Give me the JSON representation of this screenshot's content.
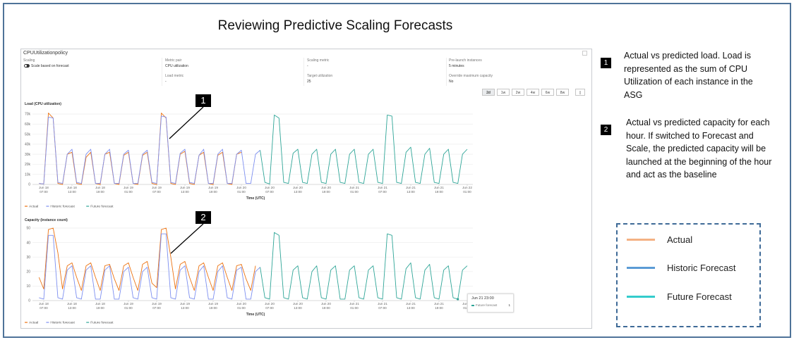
{
  "title": "Reviewing Predictive Scaling Forecasts",
  "panel": {
    "policy_name": "CPUUtilizationpolicy",
    "fields": [
      {
        "label": "Scaling",
        "value": "Scale based on forecast",
        "toggle": true
      },
      {
        "label": "Metric pair",
        "value": "CPU utilization"
      },
      {
        "label": "Scaling metric",
        "value": "-"
      },
      {
        "label": "Pre-launch instances",
        "value": "5 minutes"
      },
      {
        "label": "Load metric",
        "value": "-"
      },
      {
        "label": "Target utilization",
        "value": "25"
      },
      {
        "label": "Override maximum capacity",
        "value": "No"
      }
    ],
    "range_buttons": [
      "2d",
      "1w",
      "2w",
      "4w",
      "6w",
      "8w"
    ],
    "selected_range": "2d"
  },
  "tooltip": {
    "title": "Jun 21 23:00",
    "series": "Future forecast",
    "value": "1"
  },
  "callouts": [
    {
      "number": "1",
      "text": "Actual vs predicted load. Load is represented as the sum of CPU Utilization of each instance in the ASG"
    },
    {
      "number": "2",
      "text": "Actual vs predicted capacity for each hour. If switched to Forecast and Scale, the predicted capacity will be launched at the beginning of the hour and act as the baseline"
    }
  ],
  "legend_box": [
    {
      "label": "Actual",
      "color": "#f4b183"
    },
    {
      "label": "Historic Forecast",
      "color": "#5b9bd5"
    },
    {
      "label": "Future Forecast",
      "color": "#33cccc"
    }
  ],
  "chart_data": [
    {
      "type": "line",
      "title": "Load (CPU utilization)",
      "xlabel": "Time (UTC)",
      "ylabel": "",
      "ylim": [
        0,
        70000
      ],
      "y_ticks": [
        "0",
        "10k",
        "20k",
        "30k",
        "40k",
        "50k",
        "60k",
        "70k"
      ],
      "x_ticks": [
        [
          "Jun 18",
          "07:00"
        ],
        [
          "Jun 18",
          "13:00"
        ],
        [
          "Jun 18",
          "19:00"
        ],
        [
          "Jun 19",
          "01:00"
        ],
        [
          "Jun 19",
          "07:00"
        ],
        [
          "Jun 19",
          "13:00"
        ],
        [
          "Jun 19",
          "19:00"
        ],
        [
          "Jun 20",
          "01:00"
        ],
        [
          "Jun 20",
          "07:00"
        ],
        [
          "Jun 20",
          "13:00"
        ],
        [
          "Jun 20",
          "19:00"
        ],
        [
          "Jun 21",
          "01:00"
        ],
        [
          "Jun 21",
          "07:00"
        ],
        [
          "Jun 21",
          "13:00"
        ],
        [
          "Jun 21",
          "19:00"
        ],
        [
          "Jun 22",
          "01:00"
        ]
      ],
      "grid": true,
      "legend_position": "bottom-left",
      "units": "thousands",
      "series": [
        {
          "name": "Actual",
          "color": "#ec7211",
          "start": "Jun 18 06:00",
          "step_hours": 1,
          "values": [
            1,
            0.5,
            71,
            66,
            1,
            0,
            30,
            32,
            1,
            0,
            27,
            32,
            1,
            0,
            30,
            32,
            1,
            0,
            29,
            32,
            1,
            0,
            29,
            32,
            1,
            0,
            71,
            66,
            1,
            0,
            30,
            33,
            1,
            0,
            29,
            32,
            1,
            0,
            29,
            32,
            1,
            0,
            30,
            32
          ]
        },
        {
          "name": "Historic forecast",
          "color": "#7d8ff0",
          "start": "Jun 18 06:00",
          "step_hours": 1,
          "values": [
            1,
            0.5,
            67,
            66,
            2,
            1,
            30,
            35,
            2,
            1,
            30,
            35,
            1,
            1,
            30,
            35,
            1,
            1,
            30,
            34,
            1,
            1,
            30,
            34,
            2,
            1,
            68,
            67,
            2,
            1,
            31,
            35,
            2,
            1,
            29,
            35,
            1,
            1,
            30,
            35,
            1,
            1,
            30,
            34,
            1,
            1,
            30,
            34
          ]
        },
        {
          "name": "Future forecast",
          "color": "#2ea597",
          "start": "Jun 20 05:00",
          "step_hours": 1,
          "values": [
            34,
            2,
            0.5,
            69,
            66,
            2,
            1,
            31,
            35,
            2,
            1,
            30,
            35,
            2,
            1,
            30,
            35,
            2,
            1,
            30,
            35,
            2,
            1,
            30,
            35,
            2,
            1,
            69,
            68,
            2,
            1,
            32,
            37,
            2,
            1,
            30,
            36,
            2,
            1,
            30,
            35,
            2,
            1,
            30,
            35
          ]
        }
      ]
    },
    {
      "type": "line",
      "title": "Capacity (instance count)",
      "xlabel": "Time (UTC)",
      "ylabel": "",
      "ylim": [
        0,
        50
      ],
      "y_ticks": [
        "0",
        "10",
        "20",
        "30",
        "40",
        "50"
      ],
      "x_ticks": [
        [
          "Jun 18",
          "07:00"
        ],
        [
          "Jun 18",
          "13:00"
        ],
        [
          "Jun 18",
          "19:00"
        ],
        [
          "Jun 19",
          "01:00"
        ],
        [
          "Jun 19",
          "07:00"
        ],
        [
          "Jun 19",
          "13:00"
        ],
        [
          "Jun 19",
          "19:00"
        ],
        [
          "Jun 20",
          "01:00"
        ],
        [
          "Jun 20",
          "07:00"
        ],
        [
          "Jun 20",
          "13:00"
        ],
        [
          "Jun 20",
          "19:00"
        ],
        [
          "Jun 21",
          "01:00"
        ],
        [
          "Jun 21",
          "07:00"
        ],
        [
          "Jun 21",
          "13:00"
        ],
        [
          "Jun 21",
          "19:00"
        ],
        [
          "Jun 22",
          "01:00"
        ]
      ],
      "grid": true,
      "legend_position": "bottom-left",
      "series": [
        {
          "name": "Actual",
          "color": "#ec7211",
          "start": "Jun 18 06:00",
          "step_hours": 1,
          "values": [
            16,
            8,
            49,
            50,
            33,
            8,
            24,
            26,
            16,
            7,
            24,
            26,
            16,
            7,
            24,
            25,
            15,
            7,
            24,
            26,
            16,
            7,
            25,
            27,
            12,
            9,
            49,
            50,
            30,
            8,
            25,
            27,
            16,
            7,
            24,
            26,
            16,
            7,
            24,
            26,
            16,
            7,
            24,
            25,
            15,
            7,
            24
          ]
        },
        {
          "name": "Historic forecast",
          "color": "#7d8ff0",
          "start": "Jun 18 06:00",
          "step_hours": 1,
          "values": [
            2,
            1,
            45,
            45,
            2,
            1,
            21,
            24,
            2,
            1,
            21,
            24,
            1,
            1,
            21,
            24,
            1,
            1,
            20,
            23,
            2,
            1,
            20,
            23,
            2,
            1,
            46,
            46,
            2,
            1,
            21,
            24,
            2,
            1,
            20,
            24,
            1,
            1,
            20,
            24,
            2,
            1,
            21,
            23,
            1,
            1,
            20,
            23
          ]
        },
        {
          "name": "Future forecast",
          "color": "#2ea597",
          "start": "Jun 20 05:00",
          "step_hours": 1,
          "values": [
            23,
            2,
            1,
            47,
            45,
            2,
            1,
            21,
            24,
            2,
            1,
            20,
            24,
            2,
            1,
            21,
            24,
            1,
            1,
            21,
            24,
            2,
            1,
            21,
            24,
            2,
            1,
            46,
            45,
            2,
            1,
            22,
            26,
            2,
            1,
            21,
            25,
            2,
            1,
            21,
            24,
            2,
            1,
            21,
            24
          ]
        }
      ]
    }
  ]
}
